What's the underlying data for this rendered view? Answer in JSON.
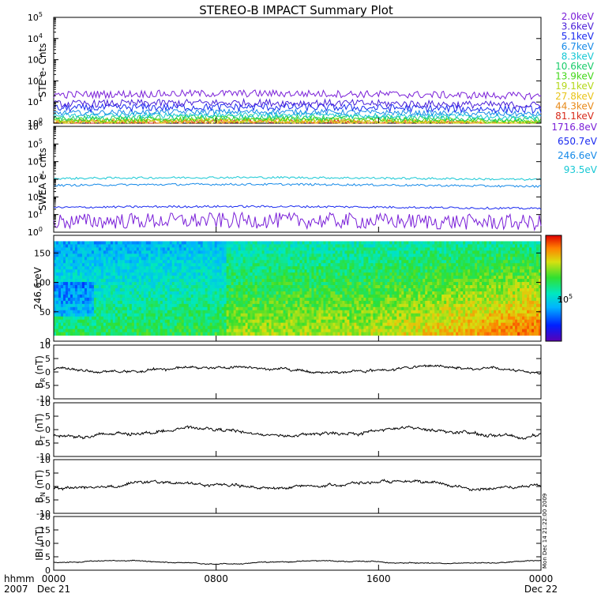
{
  "chart_data": [
    {
      "type": "line",
      "panel": "ste",
      "title": "STEREO-B IMPACT Summary Plot",
      "ylabel": "STE e- Cnts",
      "yscale": "log",
      "ylim": [
        1,
        100000
      ],
      "y_ticks": [
        {
          "base": "10",
          "exp": "0"
        },
        {
          "base": "10",
          "exp": "1"
        },
        {
          "base": "10",
          "exp": "2"
        },
        {
          "base": "10",
          "exp": "3"
        },
        {
          "base": "10",
          "exp": "4"
        },
        {
          "base": "10",
          "exp": "5"
        }
      ],
      "series": [
        {
          "name": "2.0keV",
          "color": "#7a1fd8",
          "level": 22
        },
        {
          "name": "3.6keV",
          "color": "#4a1fd8",
          "level": 8
        },
        {
          "name": "5.1keV",
          "color": "#1a2af0",
          "level": 5
        },
        {
          "name": "6.7keV",
          "color": "#168ae8",
          "level": 3
        },
        {
          "name": "8.3keV",
          "color": "#17c8d4",
          "level": 2.2
        },
        {
          "name": "10.6keV",
          "color": "#1acc6a",
          "level": 1.7
        },
        {
          "name": "13.9keV",
          "color": "#44d81a",
          "level": 1.4
        },
        {
          "name": "19.1keV",
          "color": "#b4d81a",
          "level": 1.2
        },
        {
          "name": "27.8keV",
          "color": "#e8c41a",
          "level": 1.1
        },
        {
          "name": "44.3keV",
          "color": "#e88a1a",
          "level": 1.05
        },
        {
          "name": "81.1keV",
          "color": "#d82a1a",
          "level": 1.02
        }
      ]
    },
    {
      "type": "line",
      "panel": "swea",
      "ylabel": "SWEA e- cnts",
      "yscale": "log",
      "ylim": [
        1,
        1000000
      ],
      "y_ticks": [
        {
          "base": "10",
          "exp": "0"
        },
        {
          "base": "10",
          "exp": "1"
        },
        {
          "base": "10",
          "exp": "2"
        },
        {
          "base": "10",
          "exp": "3"
        },
        {
          "base": "10",
          "exp": "4"
        },
        {
          "base": "10",
          "exp": "5"
        },
        {
          "base": "10",
          "exp": "6"
        }
      ],
      "series": [
        {
          "name": "1716.8eV",
          "color": "#7a1fd8",
          "level": 4
        },
        {
          "name": "650.7eV",
          "color": "#1a2af0",
          "level": 25
        },
        {
          "name": "246.6eV",
          "color": "#168ae8",
          "level": 450
        },
        {
          "name": "93.5eV",
          "color": "#17c8d4",
          "level": 1100
        }
      ]
    },
    {
      "type": "heatmap",
      "panel": "pad",
      "ylabel": "246.6 eV",
      "ylim": [
        0,
        180
      ],
      "y_ticks": [
        "0",
        "50",
        "100",
        "150"
      ],
      "colorbar_label": {
        "base": "10",
        "exp": "5"
      }
    },
    {
      "type": "line",
      "panel": "br",
      "ylabel": {
        "main": "B",
        "sub": "R",
        "unit": " (nT)"
      },
      "ylim": [
        -10,
        10
      ],
      "y_ticks": [
        "10",
        "5",
        "0",
        "-5",
        "-10"
      ],
      "series": [
        {
          "color": "#000000",
          "mean": 1.0,
          "amp": 1.8
        }
      ]
    },
    {
      "type": "line",
      "panel": "bt",
      "ylabel": {
        "main": "B",
        "sub": "T",
        "unit": " (nT)"
      },
      "ylim": [
        -10,
        10
      ],
      "y_ticks": [
        "10",
        "5",
        "0",
        "-5",
        "-10"
      ],
      "series": [
        {
          "color": "#000000",
          "mean": -1.0,
          "amp": 2.2
        }
      ]
    },
    {
      "type": "line",
      "panel": "bn",
      "ylabel": {
        "main": "B",
        "sub": "N",
        "unit": " (nT)"
      },
      "ylim": [
        -10,
        10
      ],
      "y_ticks": [
        "10",
        "5",
        "0",
        "-5",
        "-10"
      ],
      "series": [
        {
          "color": "#000000",
          "mean": 0.5,
          "amp": 2.0
        }
      ]
    },
    {
      "type": "line",
      "panel": "bmag",
      "ylabel": "IBI (nT)",
      "ylim": [
        0,
        20
      ],
      "y_ticks": [
        "20",
        "15",
        "10",
        "5",
        "0"
      ],
      "series": [
        {
          "color": "#000000",
          "mean": 3.0,
          "amp": 0.7
        }
      ]
    }
  ],
  "x_axis": {
    "row_label_1": "hhmm",
    "row_label_2": "2007",
    "ticks": [
      {
        "time": "0000",
        "date": "Dec 21"
      },
      {
        "time": "0800",
        "date": ""
      },
      {
        "time": "1600",
        "date": ""
      },
      {
        "time": "0000",
        "date": "Dec 22"
      }
    ]
  },
  "side_stamp": "Mon Dec 14 21:22:00 2009"
}
